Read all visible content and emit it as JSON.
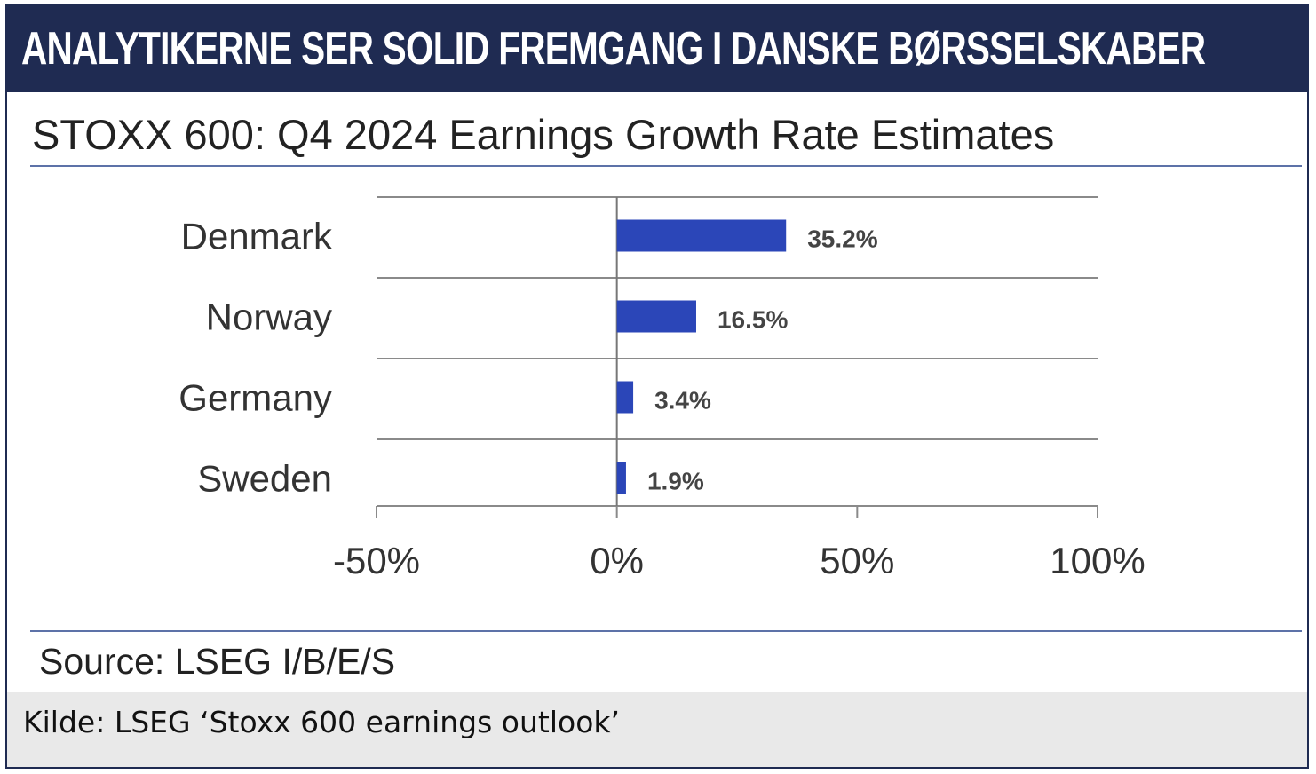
{
  "banner": {
    "title": "ANALYTIKERNE SER SOLID FREMGANG I DANSKE BØRSSELSKABER"
  },
  "chart_data": {
    "type": "bar",
    "orientation": "horizontal",
    "title": "STOXX 600: Q4 2024 Earnings Growth Rate Estimates",
    "categories": [
      "Denmark",
      "Norway",
      "Germany",
      "Sweden"
    ],
    "values": [
      35.2,
      16.5,
      3.4,
      1.9
    ],
    "value_labels": [
      "35.2%",
      "16.5%",
      "3.4%",
      "1.9%"
    ],
    "xlim": [
      -50,
      100
    ],
    "xticks": [
      -50,
      0,
      50,
      100
    ],
    "xtick_labels": [
      "-50%",
      "0%",
      "50%",
      "100%"
    ],
    "xlabel": "",
    "ylabel": "",
    "grid": "horizontal",
    "legend": "none",
    "bar_color": "#2b46b8"
  },
  "source": "Source: LSEG I/B/E/S",
  "caption": "Kilde: LSEG ‘Stoxx 600 earnings outlook’",
  "colors": {
    "banner_bg": "#1f2b52",
    "banner_text": "#ffffff",
    "rule": "#5d72a8",
    "caption_bg": "#e9e9e9"
  }
}
